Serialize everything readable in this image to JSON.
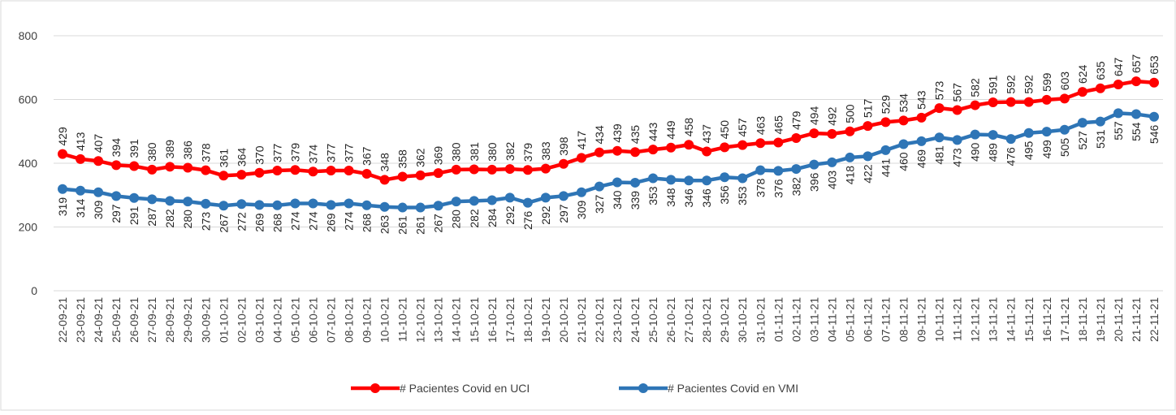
{
  "chart_data": {
    "type": "line",
    "categories": [
      "22-09-21",
      "23-09-21",
      "24-09-21",
      "25-09-21",
      "26-09-21",
      "27-09-21",
      "28-09-21",
      "29-09-21",
      "30-09-21",
      "01-10-21",
      "02-10-21",
      "03-10-21",
      "04-10-21",
      "05-10-21",
      "06-10-21",
      "07-10-21",
      "08-10-21",
      "09-10-21",
      "10-10-21",
      "11-10-21",
      "12-10-21",
      "13-10-21",
      "14-10-21",
      "15-10-21",
      "16-10-21",
      "17-10-21",
      "18-10-21",
      "19-10-21",
      "20-10-21",
      "21-10-21",
      "22-10-21",
      "23-10-21",
      "24-10-21",
      "25-10-21",
      "26-10-21",
      "27-10-21",
      "28-10-21",
      "29-10-21",
      "30-10-21",
      "31-10-21",
      "01-11-21",
      "02-11-21",
      "03-11-21",
      "04-11-21",
      "05-11-21",
      "06-11-21",
      "07-11-21",
      "08-11-21",
      "09-11-21",
      "10-11-21",
      "11-11-21",
      "12-11-21",
      "13-11-21",
      "14-11-21",
      "15-11-21",
      "16-11-21",
      "17-11-21",
      "18-11-21",
      "19-11-21",
      "20-11-21",
      "21-11-21",
      "22-11-21"
    ],
    "series": [
      {
        "name": "# Pacientes Covid en UCI",
        "color": "#ff0000",
        "labels": "above",
        "values": [
          429,
          413,
          407,
          394,
          391,
          380,
          389,
          386,
          378,
          361,
          364,
          370,
          377,
          379,
          374,
          377,
          377,
          367,
          348,
          358,
          362,
          369,
          380,
          381,
          380,
          382,
          379,
          383,
          398,
          417,
          434,
          439,
          435,
          443,
          449,
          458,
          437,
          450,
          457,
          463,
          465,
          479,
          494,
          492,
          500,
          517,
          529,
          534,
          543,
          573,
          567,
          582,
          591,
          592,
          592,
          599,
          603,
          624,
          635,
          647,
          657,
          653
        ]
      },
      {
        "name": "# Pacientes Covid en VMI",
        "color": "#2e75b6",
        "labels": "below",
        "values": [
          319,
          314,
          309,
          297,
          291,
          287,
          282,
          280,
          273,
          267,
          272,
          269,
          268,
          274,
          274,
          269,
          274,
          268,
          263,
          261,
          261,
          267,
          280,
          282,
          284,
          292,
          276,
          292,
          297,
          309,
          327,
          340,
          339,
          353,
          348,
          346,
          346,
          356,
          353,
          378,
          376,
          382,
          396,
          403,
          418,
          422,
          441,
          460,
          469,
          481,
          473,
          490,
          489,
          476,
          495,
          499,
          505,
          527,
          531,
          557,
          554,
          546
        ]
      }
    ],
    "ylim": [
      0,
      800
    ],
    "yticks": [
      0,
      200,
      400,
      600,
      800
    ],
    "grid": true,
    "legend": "bottom"
  }
}
